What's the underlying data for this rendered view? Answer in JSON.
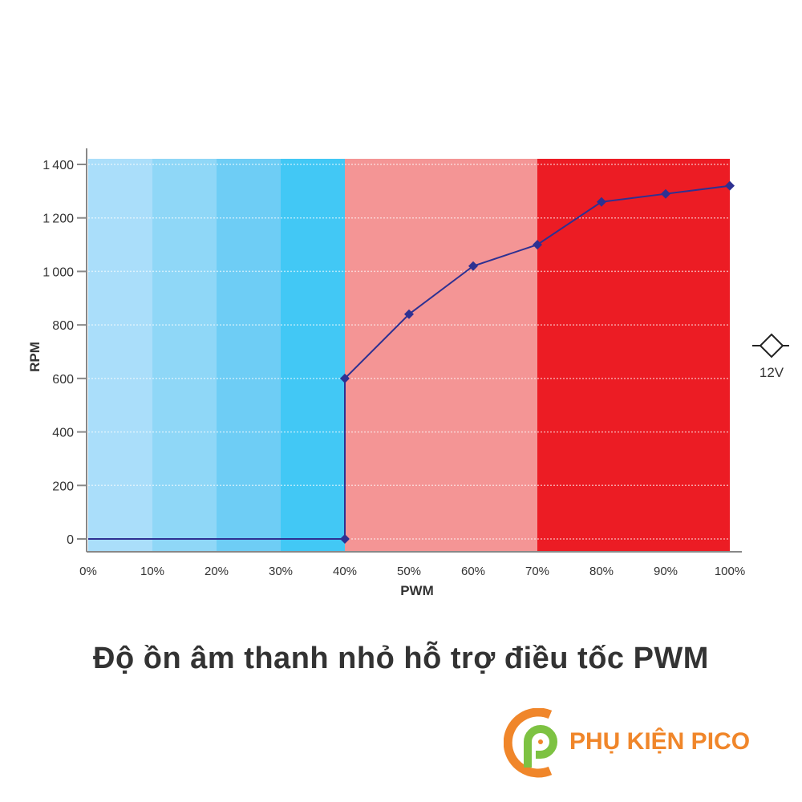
{
  "chart_data": {
    "type": "line",
    "xlabel": "PWM",
    "ylabel": "RPM",
    "x_ticks": [
      "0%",
      "10%",
      "20%",
      "30%",
      "40%",
      "50%",
      "60%",
      "70%",
      "80%",
      "90%",
      "100%"
    ],
    "y_ticks": [
      "0",
      "200",
      "400",
      "600",
      "800",
      "1000",
      "1200",
      "1400"
    ],
    "xlim": [
      0,
      100
    ],
    "ylim": [
      0,
      1400
    ],
    "grid": true,
    "series": [
      {
        "color": "#2e3192",
        "points": [
          [
            0,
            0
          ],
          [
            40,
            0
          ],
          [
            40,
            600
          ],
          [
            50,
            840
          ],
          [
            60,
            1020
          ],
          [
            70,
            1100
          ],
          [
            80,
            1260
          ],
          [
            90,
            1290
          ],
          [
            100,
            1320
          ]
        ],
        "markers": [
          [
            40,
            0
          ],
          [
            40,
            600
          ],
          [
            50,
            840
          ],
          [
            60,
            1020
          ],
          [
            70,
            1100
          ],
          [
            80,
            1260
          ],
          [
            90,
            1290
          ],
          [
            100,
            1320
          ]
        ]
      }
    ],
    "background_bands": [
      {
        "from": 0,
        "to": 10,
        "color": "#aadefa"
      },
      {
        "from": 10,
        "to": 20,
        "color": "#8fd7f7"
      },
      {
        "from": 20,
        "to": 30,
        "color": "#6ecdf5"
      },
      {
        "from": 30,
        "to": 40,
        "color": "#42c8f5"
      },
      {
        "from": 40,
        "to": 70,
        "color": "#f49595"
      },
      {
        "from": 70,
        "to": 100,
        "color": "#ec1c24"
      }
    ],
    "legend": {
      "label": "12V",
      "icon": "diamond-line-icon",
      "placement": "right"
    }
  },
  "caption": "Độ ồn âm thanh nhỏ hỗ trợ điều tốc PWM",
  "brand": {
    "name": "PHỤ KIỆN PICO",
    "colors": {
      "orange": "#f0862a",
      "green": "#7dc242"
    }
  }
}
